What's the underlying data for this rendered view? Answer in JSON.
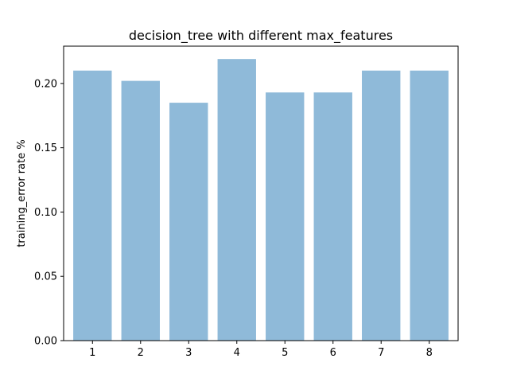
{
  "chart_data": {
    "type": "bar",
    "title": "decision_tree with different max_features",
    "xlabel": "",
    "ylabel": "training_error rate %",
    "categories": [
      "1",
      "2",
      "3",
      "4",
      "5",
      "6",
      "7",
      "8"
    ],
    "values": [
      0.21,
      0.202,
      0.185,
      0.219,
      0.193,
      0.193,
      0.21,
      0.21
    ],
    "ylim": [
      0,
      0.229
    ],
    "yticks": [
      0.0,
      0.05,
      0.1,
      0.15,
      0.2
    ],
    "ytick_labels": [
      "0.00",
      "0.05",
      "0.10",
      "0.15",
      "0.20"
    ],
    "bar_color": "#8fbad9",
    "grid": false,
    "legend": "none"
  }
}
